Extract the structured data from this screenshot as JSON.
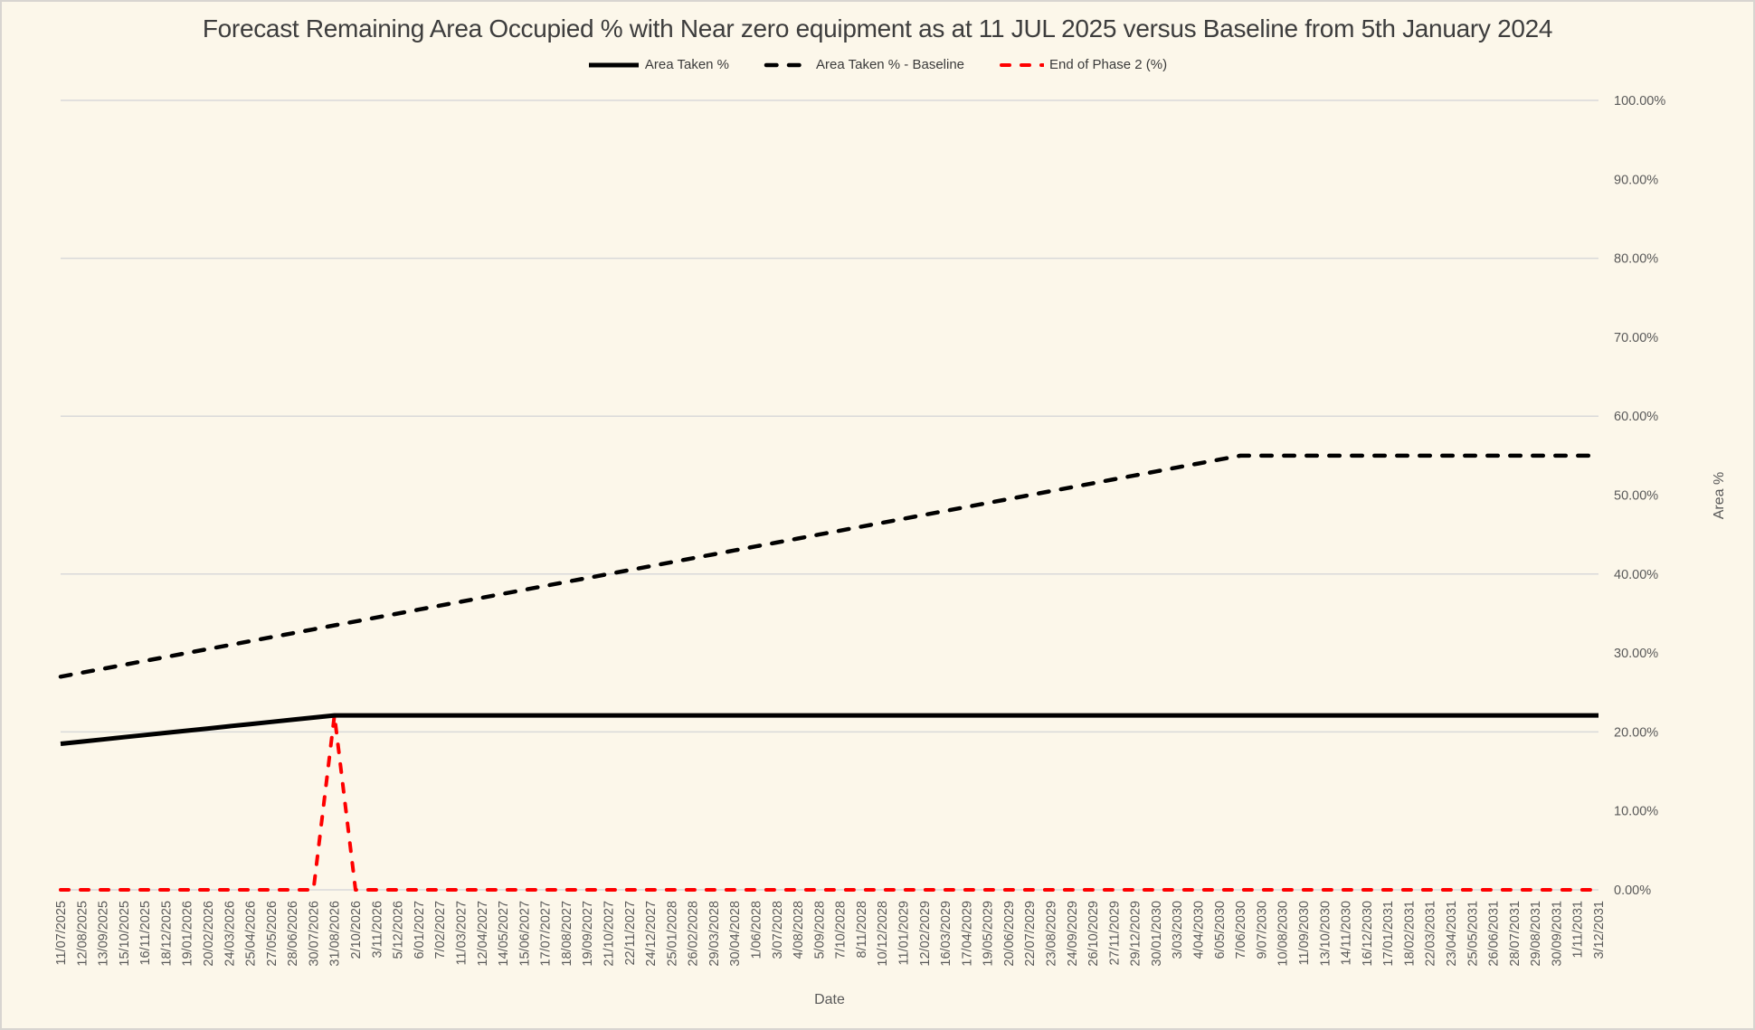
{
  "title": "Forecast Remaining Area Occupied % with Near zero equipment as at 11 JUL 2025 versus Baseline from 5th January 2024",
  "colors": {
    "background": "#FCF7EA",
    "border": "#D8D5D1",
    "gridline": "#D9D9D9",
    "axis_text": "#595959",
    "title_text": "#3D3D3D",
    "series_black": "#000000",
    "series_red": "#FE0000"
  },
  "legend": {
    "items": [
      {
        "label": "Area Taken %",
        "color": "#000000",
        "style": "solid"
      },
      {
        "label": "Area Taken % - Baseline",
        "color": "#000000",
        "style": "dashed"
      },
      {
        "label": "End of Phase 2 (%)",
        "color": "#FE0000",
        "style": "dashed"
      }
    ]
  },
  "chart_data": {
    "type": "line",
    "title": "Forecast Remaining Area Occupied % with Near zero equipment as at 11 JUL 2025 versus Baseline from 5th January 2024",
    "xlabel": "Date",
    "ylabel": "Area %",
    "ylim": [
      0,
      100
    ],
    "grid": "horizontal",
    "legend_position": "top",
    "gridlines_at": [
      0,
      20,
      40,
      60,
      80,
      100
    ],
    "y_ticks": [
      {
        "value": 0,
        "label": "0.00%"
      },
      {
        "value": 10,
        "label": "10.00%"
      },
      {
        "value": 20,
        "label": "20.00%"
      },
      {
        "value": 30,
        "label": "30.00%"
      },
      {
        "value": 40,
        "label": "40.00%"
      },
      {
        "value": 50,
        "label": "50.00%"
      },
      {
        "value": 60,
        "label": "60.00%"
      },
      {
        "value": 70,
        "label": "70.00%"
      },
      {
        "value": 80,
        "label": "80.00%"
      },
      {
        "value": 90,
        "label": "90.00%"
      },
      {
        "value": 100,
        "label": "100.00%"
      }
    ],
    "categories": [
      "11/07/2025",
      "12/08/2025",
      "13/09/2025",
      "15/10/2025",
      "16/11/2025",
      "18/12/2025",
      "19/01/2026",
      "20/02/2026",
      "24/03/2026",
      "25/04/2026",
      "27/05/2026",
      "28/06/2026",
      "30/07/2026",
      "31/08/2026",
      "2/10/2026",
      "3/11/2026",
      "5/12/2026",
      "6/01/2027",
      "7/02/2027",
      "11/03/2027",
      "12/04/2027",
      "14/05/2027",
      "15/06/2027",
      "17/07/2027",
      "18/08/2027",
      "19/09/2027",
      "21/10/2027",
      "22/11/2027",
      "24/12/2027",
      "25/01/2028",
      "26/02/2028",
      "29/03/2028",
      "30/04/2028",
      "1/06/2028",
      "3/07/2028",
      "4/08/2028",
      "5/09/2028",
      "7/10/2028",
      "8/11/2028",
      "10/12/2028",
      "11/01/2029",
      "12/02/2029",
      "16/03/2029",
      "17/04/2029",
      "19/05/2029",
      "20/06/2029",
      "22/07/2029",
      "23/08/2029",
      "24/09/2029",
      "26/10/2029",
      "27/11/2029",
      "29/12/2029",
      "30/01/2030",
      "3/03/2030",
      "4/04/2030",
      "6/05/2030",
      "7/06/2030",
      "9/07/2030",
      "10/08/2030",
      "11/09/2030",
      "13/10/2030",
      "14/11/2030",
      "16/12/2030",
      "17/01/2031",
      "18/02/2031",
      "22/03/2031",
      "23/04/2031",
      "25/05/2031",
      "26/06/2031",
      "28/07/2031",
      "29/08/2031",
      "30/09/2031",
      "1/11/2031",
      "3/12/2031"
    ],
    "series": [
      {
        "name": "End of Phase 2 (%)",
        "color": "#FE0000",
        "width": 4,
        "dash": [
          9,
          13
        ],
        "values": [
          0,
          0,
          0,
          0,
          0,
          0,
          0,
          0,
          0,
          0,
          0,
          0,
          0,
          22.1,
          0,
          0,
          0,
          0,
          0,
          0,
          0,
          0,
          0,
          0,
          0,
          0,
          0,
          0,
          0,
          0,
          0,
          0,
          0,
          0,
          0,
          0,
          0,
          0,
          0,
          0,
          0,
          0,
          0,
          0,
          0,
          0,
          0,
          0,
          0,
          0,
          0,
          0,
          0,
          0,
          0,
          0,
          0,
          0,
          0,
          0,
          0,
          0,
          0,
          0,
          0,
          0,
          0,
          0,
          0,
          0,
          0,
          0,
          0,
          0
        ]
      },
      {
        "name": "Area Taken % - Baseline",
        "color": "#000000",
        "width": 4.5,
        "dash": [
          11.5,
          13.5
        ],
        "values": [
          27,
          27.5,
          28,
          28.5,
          29,
          29.5,
          30,
          30.5,
          31,
          31.5,
          32,
          32.5,
          33,
          33.5,
          34,
          34.5,
          35,
          35.5,
          36,
          36.5,
          37,
          37.5,
          38,
          38.5,
          39,
          39.5,
          40,
          40.5,
          41,
          41.5,
          42,
          42.5,
          43,
          43.5,
          44,
          44.5,
          45,
          45.5,
          46,
          46.5,
          47,
          47.5,
          48,
          48.5,
          49,
          49.5,
          50,
          50.5,
          51,
          51.5,
          52,
          52.5,
          53,
          53.5,
          54,
          54.5,
          55,
          55,
          55,
          55,
          55,
          55,
          55,
          55,
          55,
          55,
          55,
          55,
          55,
          55,
          55,
          55,
          55,
          55
        ]
      },
      {
        "name": "Area Taken %",
        "color": "#000000",
        "width": 5,
        "dash": null,
        "values": [
          18.5,
          18.78,
          19.05,
          19.33,
          19.61,
          19.88,
          20.16,
          20.44,
          20.72,
          20.99,
          21.27,
          21.55,
          21.82,
          22.1,
          22.1,
          22.1,
          22.1,
          22.1,
          22.1,
          22.1,
          22.1,
          22.1,
          22.1,
          22.1,
          22.1,
          22.1,
          22.1,
          22.1,
          22.1,
          22.1,
          22.1,
          22.1,
          22.1,
          22.1,
          22.1,
          22.1,
          22.1,
          22.1,
          22.1,
          22.1,
          22.1,
          22.1,
          22.1,
          22.1,
          22.1,
          22.1,
          22.1,
          22.1,
          22.1,
          22.1,
          22.1,
          22.1,
          22.1,
          22.1,
          22.1,
          22.1,
          22.1,
          22.1,
          22.1,
          22.1,
          22.1,
          22.1,
          22.1,
          22.1,
          22.1,
          22.1,
          22.1,
          22.1,
          22.1,
          22.1,
          22.1,
          22.1,
          22.1,
          22.1
        ]
      }
    ]
  }
}
